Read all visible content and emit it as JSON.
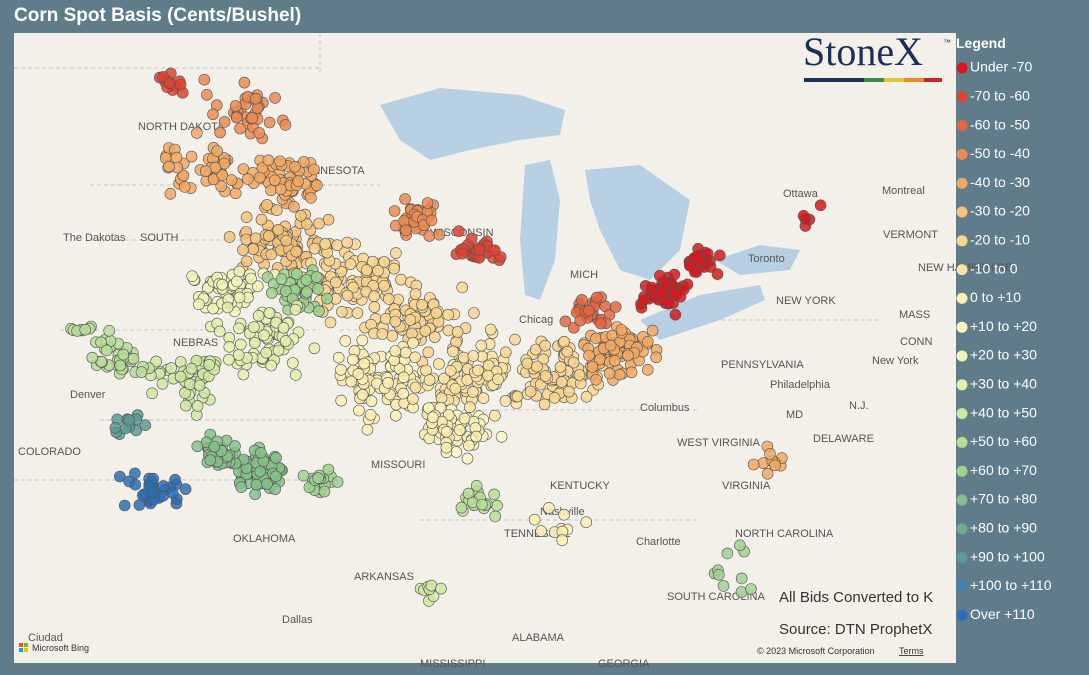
{
  "header": {
    "title": "Corn Spot Basis (Cents/Bushel)"
  },
  "logo": {
    "text": "StoneX",
    "mark": "™"
  },
  "legend": {
    "title": "Legend",
    "items": [
      {
        "label": "Under -70",
        "color": "#d7191c"
      },
      {
        "label": "-70 to -60",
        "color": "#de4330"
      },
      {
        "label": "-60 to -50",
        "color": "#e5653f"
      },
      {
        "label": "-50 to -40",
        "color": "#ec8a50"
      },
      {
        "label": "-40 to -30",
        "color": "#f2a862"
      },
      {
        "label": "-30 to -20",
        "color": "#f6c27a"
      },
      {
        "label": "-20 to -10",
        "color": "#f9d58f"
      },
      {
        "label": "-10 to 0",
        "color": "#fbe3a2"
      },
      {
        "label": "0 to +10",
        "color": "#fdeeb3"
      },
      {
        "label": "+10 to +20",
        "color": "#fbf7bf"
      },
      {
        "label": "+20 to +30",
        "color": "#f1f5b8"
      },
      {
        "label": "+30 to +40",
        "color": "#e2efad"
      },
      {
        "label": "+40 to +50",
        "color": "#cfe7a2"
      },
      {
        "label": "+50 to +60",
        "color": "#b7dd98"
      },
      {
        "label": "+60 to +70",
        "color": "#9ed18e"
      },
      {
        "label": "+70 to +80",
        "color": "#85c089"
      },
      {
        "label": "+80 to +90",
        "color": "#6dac8c"
      },
      {
        "label": "+90 to +100",
        "color": "#5a9a98"
      },
      {
        "label": "+100 to +110",
        "color": "#3f84a8"
      },
      {
        "label": "Over +110",
        "color": "#2b6fb5"
      }
    ]
  },
  "map": {
    "labels": [
      "NORTH DAKOTA",
      "MINNESOTA",
      "The Dakotas",
      "SOUTH",
      "NEBRAS",
      "Denver",
      "COLORADO",
      "MISSOURI",
      "KENTUCKY",
      "Nashville",
      "TENNESSEE",
      "OKLAHOMA",
      "ARKANSAS",
      "Dallas",
      "ALABAMA",
      "MISSISSIPPI",
      "GEORGIA",
      "Chicag",
      "Columbus",
      "WEST VIRGINIA",
      "VIRGINIA",
      "NORTH CAROLINA",
      "Charlotte",
      "SOUTH CAROLINA",
      "PENNSYLVANIA",
      "Philadelphia",
      "New York",
      "NEW YORK",
      "MD",
      "N.J.",
      "DELAWARE",
      "Ottawa",
      "Montreal",
      "VERMONT",
      "NEW HAMPSHIRE",
      "MASS",
      "CONN",
      "Toronto",
      "Ciudad",
      "MICH",
      "WISCONSIN"
    ],
    "notes": [
      "All Bids Converted to K",
      "Source: DTN ProphetX"
    ],
    "attribution": "Microsoft Bing",
    "copyright": "© 2023 Microsoft Corporation",
    "terms": "Terms"
  }
}
